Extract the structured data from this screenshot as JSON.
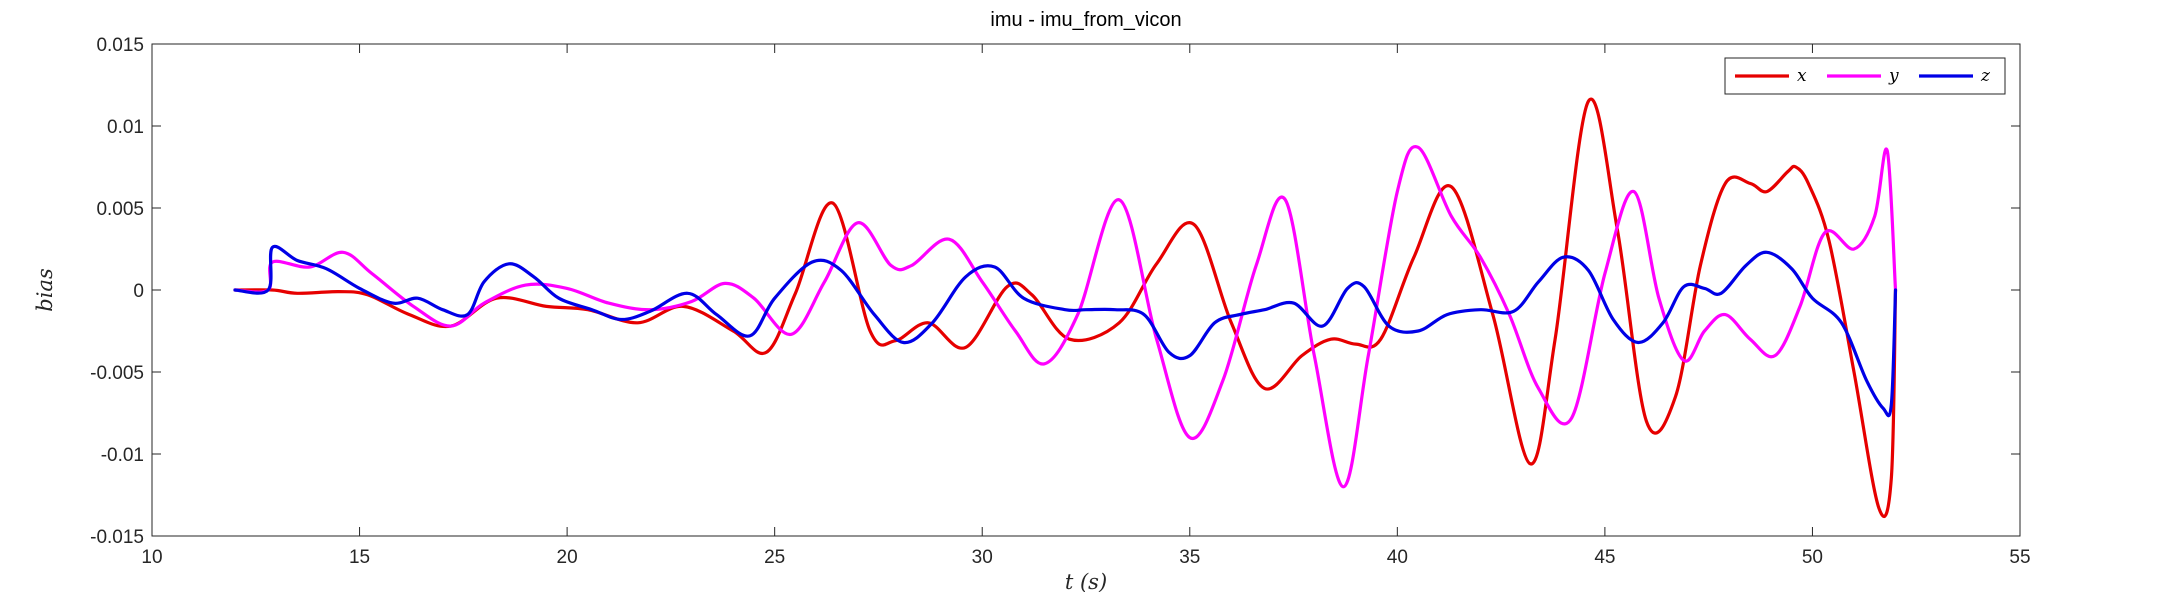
{
  "chart_data": {
    "type": "line",
    "title": "imu - imu_from_vicon",
    "xlabel": "t (s)",
    "ylabel": "bias",
    "xlim": [
      10,
      55
    ],
    "ylim": [
      -0.015,
      0.015
    ],
    "xticks": [
      10,
      15,
      20,
      25,
      30,
      35,
      40,
      45,
      50,
      55
    ],
    "yticks": [
      -0.015,
      -0.01,
      -0.005,
      0,
      0.005,
      0.01,
      0.015
    ],
    "xtick_labels": [
      "10",
      "15",
      "20",
      "25",
      "30",
      "35",
      "40",
      "45",
      "50",
      "55"
    ],
    "ytick_labels": [
      "-0.015",
      "-0.01",
      "-0.005",
      "0",
      "0.005",
      "0.01",
      "0.015"
    ],
    "grid": false,
    "legend": {
      "placement": "top-right",
      "orientation": "horizontal"
    },
    "series": [
      {
        "name": "x",
        "color": "#e60000",
        "x": [
          12,
          12.9,
          13.5,
          14.5,
          15.2,
          16.2,
          17.2,
          18.3,
          19.5,
          20.5,
          21.7,
          22.8,
          24.0,
          24.8,
          25.5,
          26.4,
          27.3,
          27.9,
          28.7,
          29.6,
          30.6,
          31.2,
          32.1,
          33.3,
          34.2,
          35.1,
          36.0,
          36.8,
          37.7,
          38.4,
          39.0,
          39.6,
          40.4,
          41.3,
          42.3,
          43.2,
          43.8,
          44.6,
          45.3,
          46.0,
          46.7,
          47.3,
          47.9,
          48.5,
          48.9,
          49.4,
          49.6,
          49.9,
          50.4,
          51.0,
          51.6,
          51.9,
          52.0
        ],
        "values": [
          0,
          0,
          -0.0002,
          -0.0001,
          -0.0003,
          -0.0015,
          -0.0022,
          -0.0005,
          -0.001,
          -0.0012,
          -0.002,
          -0.001,
          -0.0025,
          -0.0038,
          -0.0002,
          0.0053,
          -0.0025,
          -0.0031,
          -0.002,
          -0.0035,
          0.0002,
          -0.0003,
          -0.003,
          -0.002,
          0.0016,
          0.004,
          -0.002,
          -0.006,
          -0.004,
          -0.003,
          -0.0033,
          -0.003,
          0.002,
          0.0063,
          -0.0015,
          -0.0106,
          -0.003,
          0.0115,
          0.0037,
          -0.008,
          -0.0065,
          0.0015,
          0.0065,
          0.0065,
          0.006,
          0.0072,
          0.0075,
          0.0065,
          0.003,
          -0.005,
          -0.0133,
          -0.0115,
          0
        ]
      },
      {
        "name": "y",
        "color": "#ff00ff",
        "x": [
          12,
          12.8,
          12.9,
          13.8,
          14.6,
          15.3,
          16.3,
          17.2,
          18.0,
          19.0,
          20.0,
          21.0,
          22.0,
          23.0,
          23.8,
          24.5,
          25.4,
          26.2,
          27.0,
          27.8,
          28.3,
          29.2,
          30.0,
          30.8,
          31.5,
          32.3,
          33.3,
          34.2,
          35.0,
          35.8,
          36.6,
          37.3,
          38.0,
          38.7,
          39.3,
          40.0,
          40.5,
          41.3,
          42.0,
          42.7,
          43.4,
          44.2,
          45.0,
          45.7,
          46.3,
          46.9,
          47.4,
          47.9,
          48.5,
          49.1,
          49.7,
          50.3,
          51.0,
          51.5,
          51.8,
          52.0
        ],
        "values": [
          0,
          0,
          0.0017,
          0.0014,
          0.0023,
          0.001,
          -0.001,
          -0.0022,
          -0.0008,
          0.0003,
          0.0001,
          -0.0008,
          -0.0012,
          -0.0007,
          0.0004,
          -0.0005,
          -0.0027,
          0.0005,
          0.0041,
          0.0015,
          0.0015,
          0.0031,
          0.0005,
          -0.0025,
          -0.0045,
          -0.0015,
          0.0055,
          -0.003,
          -0.009,
          -0.0055,
          0.0015,
          0.0055,
          -0.004,
          -0.012,
          -0.004,
          0.006,
          0.0087,
          0.0045,
          0.002,
          -0.0015,
          -0.006,
          -0.0078,
          0.001,
          0.006,
          -0.0005,
          -0.0043,
          -0.0025,
          -0.0015,
          -0.003,
          -0.004,
          -0.001,
          0.0035,
          0.0025,
          0.0045,
          0.0085,
          0
        ]
      },
      {
        "name": "z",
        "color": "#0000e6",
        "x": [
          12,
          12.8,
          12.9,
          13.5,
          14.2,
          15.0,
          15.8,
          16.4,
          17.0,
          17.6,
          18.0,
          18.6,
          19.2,
          19.8,
          20.6,
          21.3,
          22.0,
          22.9,
          23.6,
          24.4,
          25.0,
          25.9,
          26.6,
          27.4,
          28.1,
          28.8,
          29.6,
          30.3,
          31.0,
          32.0,
          32.5,
          33.2,
          33.9,
          34.5,
          35.0,
          35.6,
          36.2,
          36.8,
          37.5,
          38.2,
          38.8,
          39.2,
          39.8,
          40.5,
          41.2,
          42.0,
          42.8,
          43.4,
          44.0,
          44.6,
          45.2,
          45.8,
          46.4,
          46.9,
          47.4,
          47.8,
          48.4,
          48.9,
          49.5,
          50.0,
          50.7,
          51.3,
          51.7,
          51.9,
          52.0
        ],
        "values": [
          0,
          0,
          0.0026,
          0.0018,
          0.0013,
          0.0001,
          -0.0008,
          -0.0005,
          -0.0012,
          -0.0015,
          0.0005,
          0.0016,
          0.0008,
          -0.0005,
          -0.0012,
          -0.0018,
          -0.0013,
          -0.0002,
          -0.0015,
          -0.0028,
          -0.0005,
          0.0017,
          0.0012,
          -0.0015,
          -0.0032,
          -0.002,
          0.0008,
          0.0014,
          -0.0005,
          -0.0012,
          -0.0012,
          -0.0012,
          -0.0015,
          -0.0038,
          -0.004,
          -0.002,
          -0.0015,
          -0.0012,
          -0.0008,
          -0.0022,
          0.0001,
          0.0002,
          -0.0022,
          -0.0025,
          -0.0015,
          -0.0012,
          -0.0013,
          0.0005,
          0.002,
          0.0012,
          -0.0018,
          -0.0032,
          -0.002,
          0.0002,
          0.0001,
          -0.0002,
          0.0015,
          0.0023,
          0.0013,
          -0.0005,
          -0.002,
          -0.0055,
          -0.0072,
          -0.007,
          0
        ]
      }
    ]
  }
}
